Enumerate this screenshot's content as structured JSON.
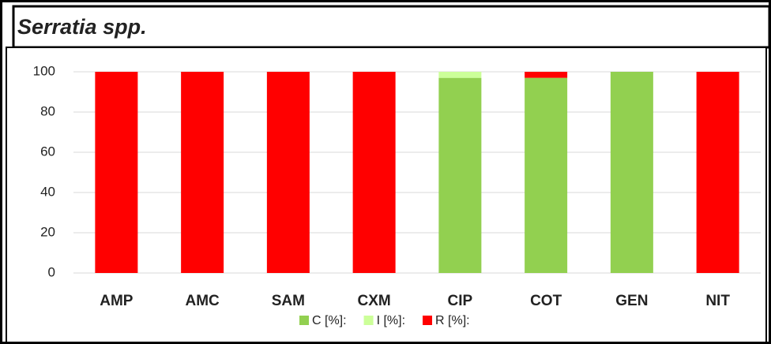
{
  "chart_data": {
    "type": "stacked_bar",
    "title": "Serratia spp.",
    "categories": [
      "AMP",
      "AMC",
      "SAM",
      "CXM",
      "CIP",
      "COT",
      "GEN",
      "NIT"
    ],
    "series": [
      {
        "name": "C [%]:",
        "color": "#92d050",
        "values": [
          0,
          0,
          0,
          0,
          97,
          97,
          100,
          0
        ]
      },
      {
        "name": "I [%]:",
        "color": "#ccff99",
        "values": [
          0,
          0,
          0,
          0,
          3,
          0,
          0,
          0
        ]
      },
      {
        "name": "R [%]:",
        "color": "#ff0000",
        "values": [
          100,
          100,
          100,
          100,
          0,
          3,
          0,
          100
        ]
      }
    ],
    "ylim": [
      0,
      100
    ],
    "yticks": [
      0,
      20,
      40,
      60,
      80,
      100
    ],
    "grid": true,
    "legend": "bottom"
  }
}
